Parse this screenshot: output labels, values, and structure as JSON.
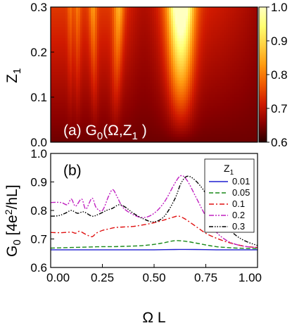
{
  "chart_data": [
    {
      "type": "heatmap",
      "panel_label": "(a) G",
      "panel_label_sub": "0",
      "panel_label_rest": "(Ω,Z",
      "panel_label_sub2": "1",
      "panel_label_end": " )",
      "ylabel": "Z",
      "ylabel_sub": "1",
      "xlim": [
        0.0,
        1.0
      ],
      "ylim": [
        0.0,
        0.3
      ],
      "yticks": [
        "0.0",
        "0.1",
        "0.2",
        "0.3"
      ],
      "colorbar": {
        "range": [
          0.6,
          1.0
        ],
        "ticks": [
          "0.6",
          "0.7",
          "0.8",
          "0.9",
          "1.0"
        ],
        "colors": [
          "#2a0000",
          "#8a0000",
          "#d01a00",
          "#f05a00",
          "#ff9a10",
          "#ffd040",
          "#ffff70",
          "#ffffc0"
        ]
      },
      "bright_ridges_x": [
        0.1,
        0.13,
        0.22,
        0.3,
        0.63
      ]
    },
    {
      "type": "line",
      "panel_label": "(b)",
      "ylabel": "G",
      "ylabel_sub": "0",
      "ylabel_rest": " [4e",
      "ylabel_sup": "2",
      "ylabel_end": "/hL]",
      "xlabel": "Ω L",
      "xlim": [
        0.0,
        1.0
      ],
      "ylim": [
        0.6,
        1.0
      ],
      "xticks": [
        "0.00",
        "0.25",
        "0.50",
        "0.75",
        "1.00"
      ],
      "yticks": [
        "0.6",
        "0.7",
        "0.8",
        "0.9",
        "1.0"
      ],
      "legend_title": "Z",
      "legend_title_sub": "1",
      "legend_position": "top-right",
      "series": [
        {
          "name": "0.01",
          "color": "#1f1fd0",
          "dash": "solid",
          "x": [
            0,
            0.1,
            0.2,
            0.3,
            0.4,
            0.5,
            0.6,
            0.7,
            0.8,
            0.9,
            1.0
          ],
          "y": [
            0.662,
            0.662,
            0.662,
            0.662,
            0.662,
            0.662,
            0.663,
            0.663,
            0.662,
            0.662,
            0.662
          ]
        },
        {
          "name": "0.05",
          "color": "#1a8a1a",
          "dash": "dashed",
          "x": [
            0,
            0.05,
            0.1,
            0.15,
            0.2,
            0.25,
            0.3,
            0.35,
            0.4,
            0.45,
            0.5,
            0.55,
            0.6,
            0.65,
            0.7,
            0.75,
            0.8,
            0.85,
            0.9,
            0.95,
            1.0
          ],
          "y": [
            0.668,
            0.669,
            0.67,
            0.671,
            0.672,
            0.673,
            0.673,
            0.674,
            0.675,
            0.677,
            0.681,
            0.687,
            0.694,
            0.692,
            0.686,
            0.679,
            0.673,
            0.67,
            0.668,
            0.667,
            0.666
          ]
        },
        {
          "name": "0.1",
          "color": "#e01010",
          "dash": "dashdot",
          "x": [
            0,
            0.05,
            0.1,
            0.12,
            0.14,
            0.17,
            0.2,
            0.22,
            0.25,
            0.28,
            0.31,
            0.35,
            0.4,
            0.45,
            0.5,
            0.55,
            0.6,
            0.62,
            0.65,
            0.7,
            0.75,
            0.8,
            0.85,
            0.9,
            0.95,
            1.0
          ],
          "y": [
            0.723,
            0.722,
            0.724,
            0.72,
            0.727,
            0.716,
            0.708,
            0.72,
            0.73,
            0.735,
            0.74,
            0.742,
            0.744,
            0.75,
            0.757,
            0.767,
            0.778,
            0.78,
            0.77,
            0.745,
            0.72,
            0.703,
            0.69,
            0.68,
            0.673,
            0.67
          ]
        },
        {
          "name": "0.2",
          "color": "#c020c0",
          "dash": "dashdotdot",
          "x": [
            0,
            0.05,
            0.08,
            0.1,
            0.12,
            0.15,
            0.17,
            0.2,
            0.22,
            0.25,
            0.28,
            0.3,
            0.32,
            0.35,
            0.4,
            0.45,
            0.5,
            0.55,
            0.6,
            0.63,
            0.66,
            0.7,
            0.75,
            0.8,
            0.85,
            0.9,
            0.95,
            1.0
          ],
          "y": [
            0.828,
            0.828,
            0.82,
            0.84,
            0.815,
            0.84,
            0.805,
            0.843,
            0.81,
            0.8,
            0.85,
            0.873,
            0.85,
            0.81,
            0.785,
            0.775,
            0.79,
            0.83,
            0.895,
            0.922,
            0.905,
            0.85,
            0.78,
            0.725,
            0.695,
            0.68,
            0.673,
            0.67
          ]
        },
        {
          "name": "0.3",
          "color": "#000000",
          "dash": "dashdotdotdot",
          "x": [
            0,
            0.04,
            0.07,
            0.1,
            0.13,
            0.16,
            0.2,
            0.23,
            0.27,
            0.3,
            0.33,
            0.36,
            0.4,
            0.45,
            0.5,
            0.55,
            0.6,
            0.63,
            0.66,
            0.7,
            0.75,
            0.8,
            0.85,
            0.9,
            0.95,
            1.0
          ],
          "y": [
            0.78,
            0.782,
            0.79,
            0.8,
            0.79,
            0.795,
            0.78,
            0.786,
            0.8,
            0.808,
            0.82,
            0.812,
            0.79,
            0.77,
            0.76,
            0.78,
            0.84,
            0.895,
            0.92,
            0.905,
            0.86,
            0.8,
            0.745,
            0.71,
            0.69,
            0.677
          ]
        }
      ]
    }
  ]
}
